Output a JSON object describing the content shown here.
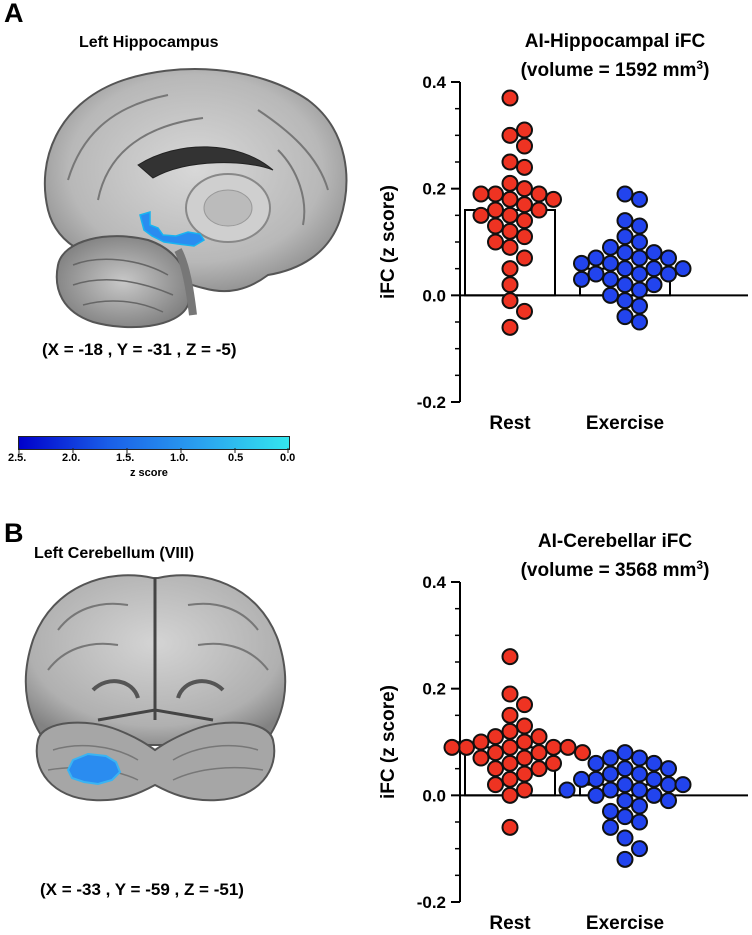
{
  "panels": [
    {
      "letter": "A",
      "region": "Left Hippocampus",
      "coords": "(X = -18 , Y = -31 , Z = -5)",
      "view": "sagittal"
    },
    {
      "letter": "B",
      "region": "Left Cerebellum (VIII)",
      "coords": "(X = -33 , Y = -59 , Z = -51)",
      "view": "coronal"
    }
  ],
  "colorbar": {
    "label": "z score",
    "ticks": [
      "2.5.",
      "2.0.",
      "1.5.",
      "1.0.",
      "0.5",
      "0.0"
    ],
    "color_start": "#0000cc",
    "color_end": "#33e6ee"
  },
  "colors": {
    "rest_fill": "#ee3322",
    "exercise_fill": "#2244ee",
    "dot_stroke": "#111111",
    "bar_fill": "#ffffff"
  },
  "chart_data": [
    {
      "type": "bar",
      "title": "AI-Hippocampal iFC",
      "subtitle_prefix": "(volume = 1592 mm",
      "subtitle_sup": "3",
      "subtitle_suffix": ")",
      "xlabel": "",
      "ylabel": "iFC (z score)",
      "ylim": [
        -0.2,
        0.4
      ],
      "yticks": [
        -0.2,
        0.0,
        0.2,
        0.4
      ],
      "ytick_labels": [
        "-0.2",
        "0.0",
        "0.2",
        "0.4"
      ],
      "categories": [
        "Rest",
        "Exercise"
      ],
      "means": [
        0.16,
        0.05
      ],
      "points": [
        [
          0.37,
          0.3,
          0.31,
          0.28,
          0.25,
          0.24,
          0.21,
          0.2,
          0.19,
          0.19,
          0.19,
          0.18,
          0.18,
          0.17,
          0.16,
          0.16,
          0.15,
          0.15,
          0.14,
          0.13,
          0.12,
          0.11,
          0.1,
          0.09,
          0.07,
          0.05,
          0.02,
          -0.01,
          -0.03,
          -0.06
        ],
        [
          0.19,
          0.18,
          0.14,
          0.13,
          0.11,
          0.1,
          0.09,
          0.08,
          0.08,
          0.07,
          0.07,
          0.07,
          0.06,
          0.06,
          0.05,
          0.05,
          0.05,
          0.04,
          0.04,
          0.04,
          0.03,
          0.03,
          0.02,
          0.02,
          0.01,
          0.0,
          -0.01,
          -0.02,
          -0.04,
          -0.05
        ]
      ]
    },
    {
      "type": "bar",
      "title": "AI-Cerebellar iFC",
      "subtitle_prefix": "(volume = 3568 mm",
      "subtitle_sup": "3",
      "subtitle_suffix": ")",
      "xlabel": "",
      "ylabel": "iFC (z score)",
      "ylim": [
        -0.2,
        0.4
      ],
      "yticks": [
        -0.2,
        0.0,
        0.2,
        0.4
      ],
      "ytick_labels": [
        "-0.2",
        "0.0",
        "0.2",
        "0.4"
      ],
      "categories": [
        "Rest",
        "Exercise"
      ],
      "means": [
        0.09,
        0.02
      ],
      "points": [
        [
          0.26,
          0.19,
          0.17,
          0.15,
          0.13,
          0.12,
          0.11,
          0.11,
          0.1,
          0.1,
          0.09,
          0.09,
          0.09,
          0.09,
          0.09,
          0.08,
          0.08,
          0.08,
          0.07,
          0.07,
          0.06,
          0.06,
          0.05,
          0.05,
          0.04,
          0.03,
          0.02,
          0.01,
          0.0,
          -0.06
        ],
        [
          0.08,
          0.07,
          0.07,
          0.06,
          0.06,
          0.05,
          0.05,
          0.04,
          0.04,
          0.03,
          0.03,
          0.03,
          0.02,
          0.02,
          0.02,
          0.01,
          0.01,
          0.01,
          0.0,
          0.0,
          -0.01,
          -0.01,
          -0.02,
          -0.03,
          -0.04,
          -0.05,
          -0.06,
          -0.08,
          -0.1,
          -0.12
        ]
      ]
    }
  ]
}
